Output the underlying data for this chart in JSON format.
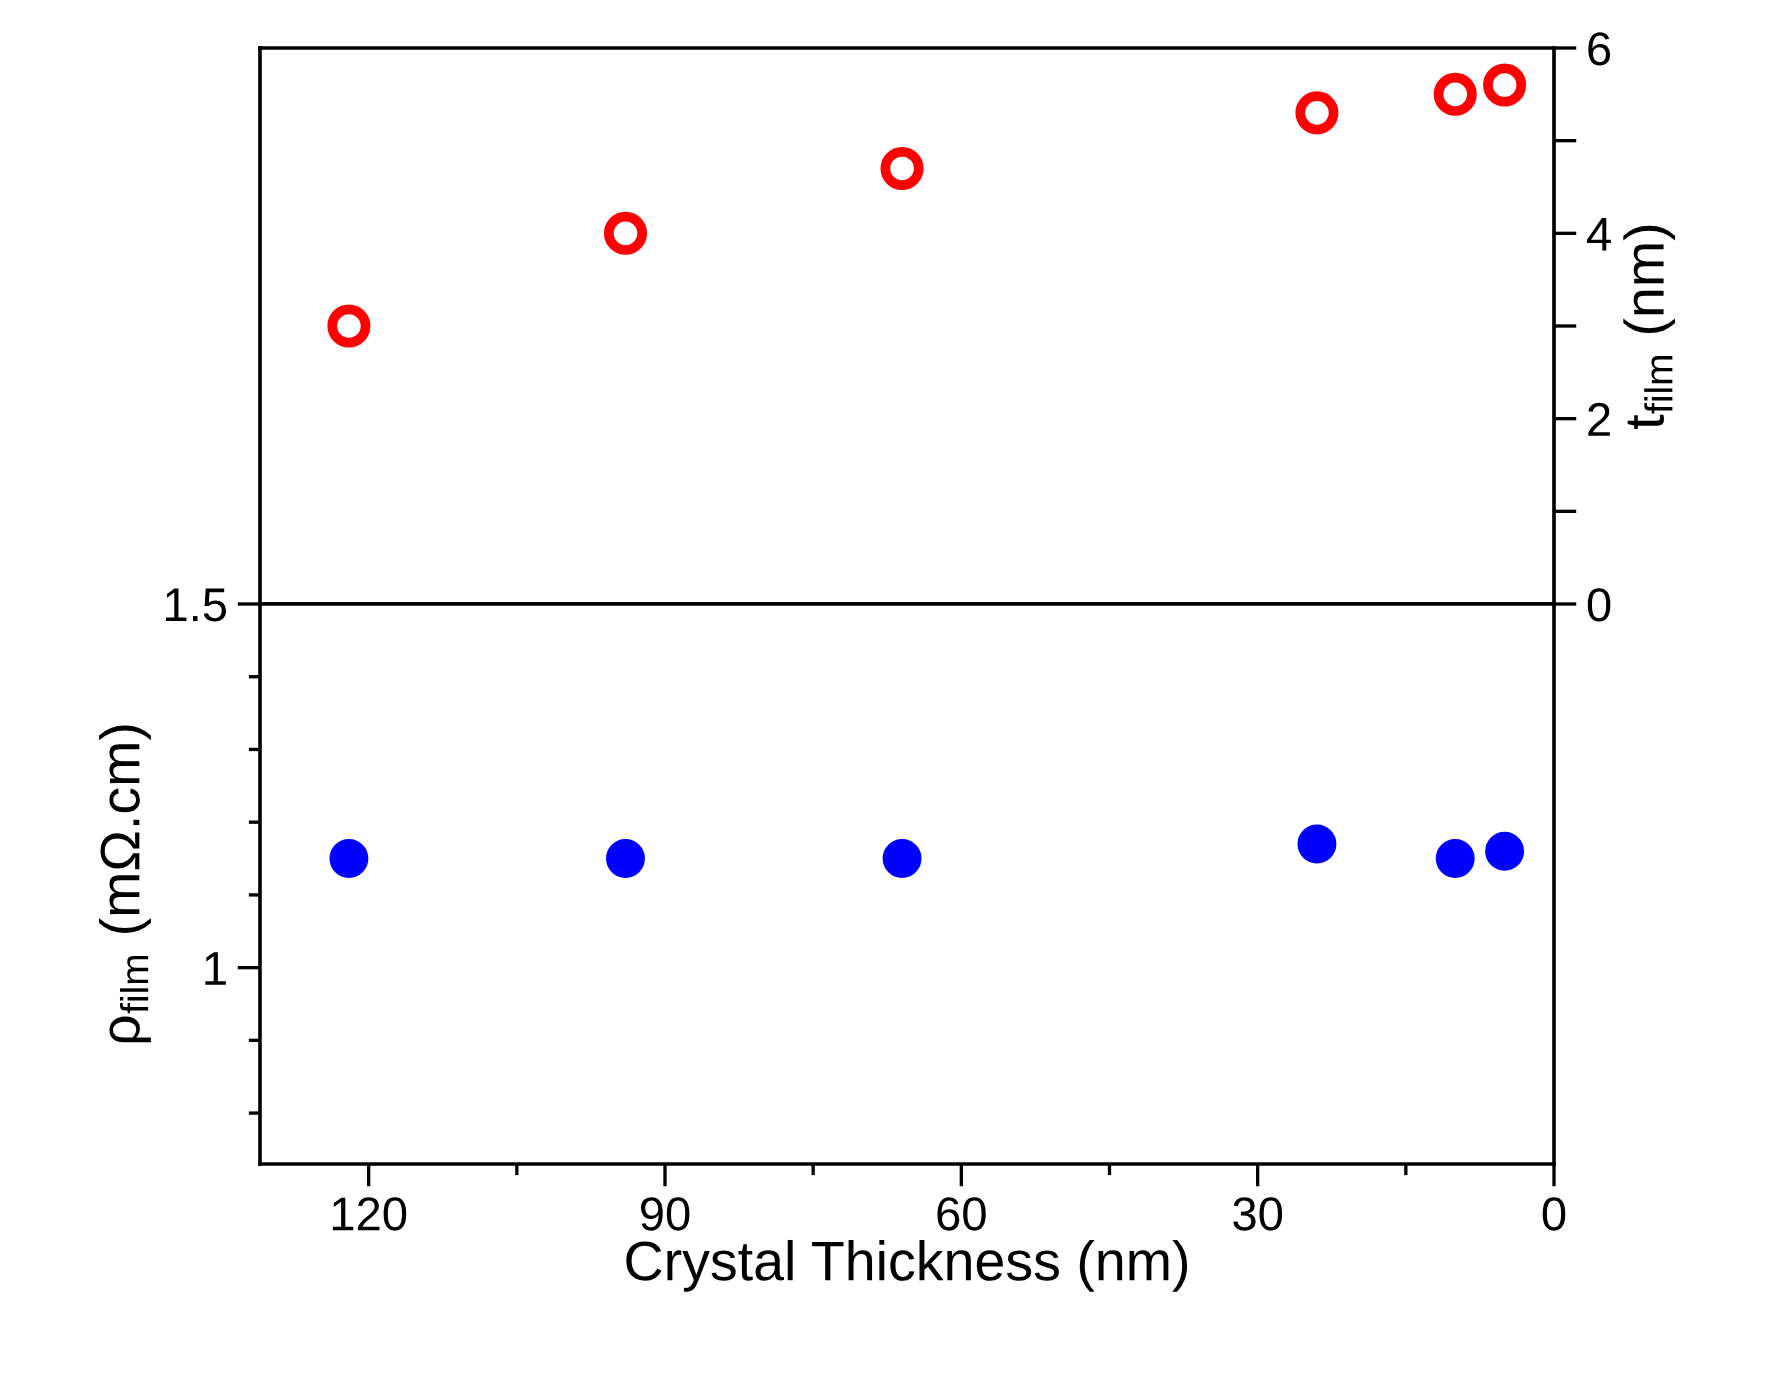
{
  "chart_data": [
    {
      "type": "scatter",
      "x": [
        122,
        94,
        66,
        24,
        10,
        5
      ],
      "xlim": [
        131,
        0
      ],
      "tick_labels": "y",
      "marker": "circle",
      "y2label": "t$_{film}$ (nm)",
      "y2lim": [
        0,
        6
      ],
      "y2ticks": [
        0,
        {
          "value": 1,
          "label": null
        },
        2,
        {
          "value": 3,
          "label": null
        },
        4,
        {
          "value": 5,
          "label": null
        },
        6
      ],
      "series": [
        {
          "color": "#ff0000",
          "axis": "y2",
          "values": [
            3.0,
            4.0,
            4.7,
            5.3,
            5.5,
            5.6
          ]
        }
      ]
    },
    {
      "type": "scatter",
      "x": [
        122,
        94,
        66,
        24,
        10,
        5
      ],
      "xlim": [
        131,
        0
      ],
      "xticks": [
        120,
        {
          "value": 105,
          "label": null
        },
        90,
        {
          "value": 75,
          "label": null
        },
        60,
        {
          "value": 45,
          "label": null
        },
        30,
        {
          "value": 15,
          "label": null
        },
        0
      ],
      "xlabel": "Crystal Thickness (nm)",
      "ylabel": "ρ$_{film}$ (mΩ.cm)",
      "marker": "circle",
      "ylim": [
        0.73,
        1.5
      ],
      "yticks": [
        {
          "value": 0.8,
          "label": null
        },
        {
          "value": 0.9,
          "label": null
        },
        1,
        {
          "value": 1.1,
          "label": null
        },
        {
          "value": 1.2,
          "label": null
        },
        {
          "value": 1.3,
          "label": null
        },
        {
          "value": 1.4,
          "label": null
        },
        1.5
      ],
      "series": [
        {
          "color": "#0000ff",
          "values": [
            1.15,
            1.15,
            1.15,
            1.17,
            1.15,
            1.16
          ]
        }
      ]
    }
  ]
}
